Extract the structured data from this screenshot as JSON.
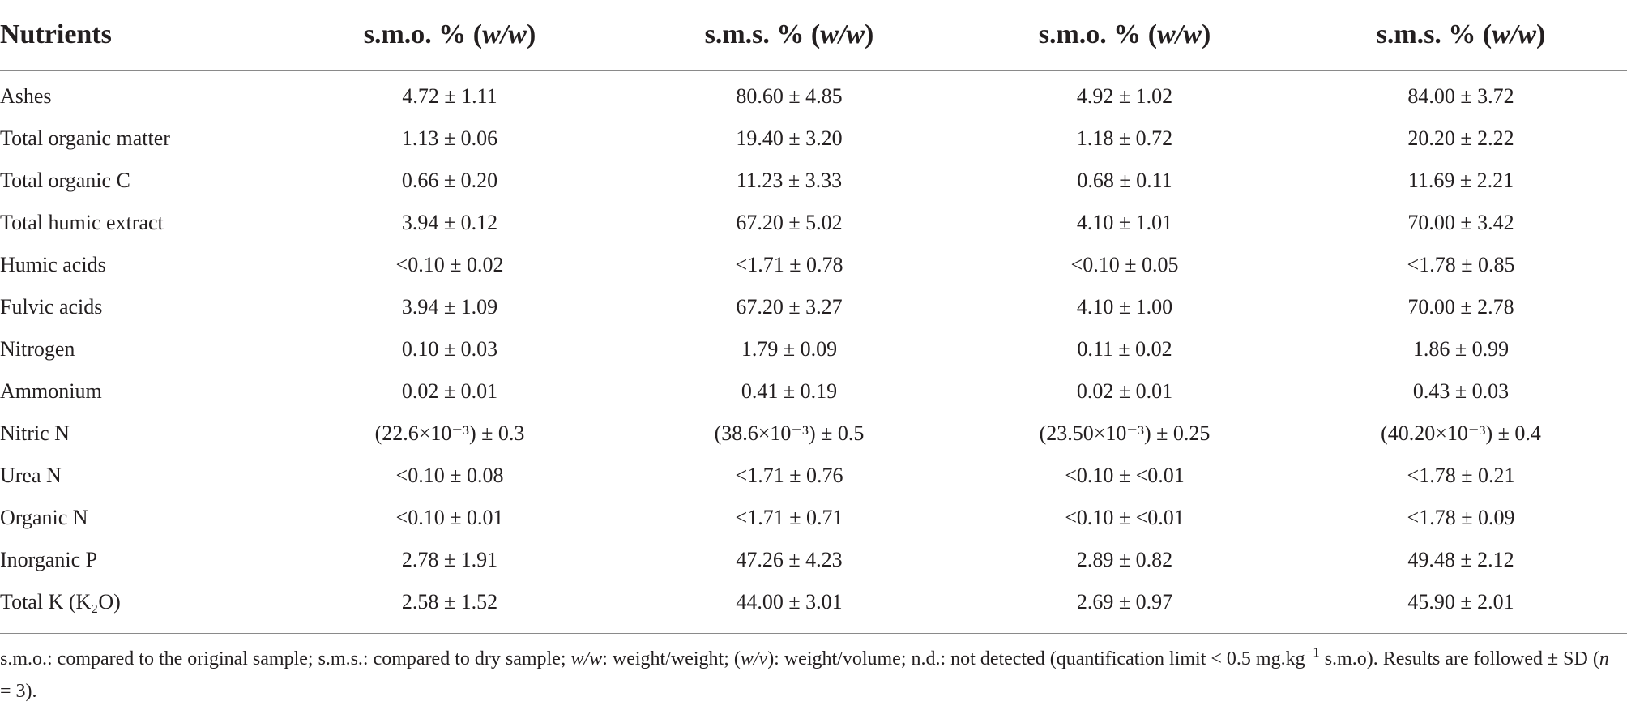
{
  "table": {
    "headers": [
      {
        "pre": "Nutrients",
        "italic": "",
        "post": ""
      },
      {
        "pre": "s.m.o. % (",
        "italic": "w/w",
        "post": ")"
      },
      {
        "pre": "s.m.s. % (",
        "italic": "w/w",
        "post": ")"
      },
      {
        "pre": "s.m.o. % (",
        "italic": "w/w",
        "post": ")"
      },
      {
        "pre": "s.m.s. % (",
        "italic": "w/w",
        "post": ")"
      }
    ],
    "rows": [
      {
        "label": "Ashes",
        "cells": [
          "4.72 ± 1.11",
          "80.60 ± 4.85",
          "4.92 ± 1.02",
          "84.00 ± 3.72"
        ]
      },
      {
        "label": "Total organic matter",
        "cells": [
          "1.13 ± 0.06",
          "19.40 ± 3.20",
          "1.18 ± 0.72",
          "20.20 ± 2.22"
        ]
      },
      {
        "label": "Total organic C",
        "cells": [
          "0.66 ± 0.20",
          "11.23 ± 3.33",
          "0.68 ± 0.11",
          "11.69 ± 2.21"
        ]
      },
      {
        "label": "Total humic extract",
        "cells": [
          "3.94 ± 0.12",
          "67.20 ± 5.02",
          "4.10 ± 1.01",
          "70.00 ± 3.42"
        ]
      },
      {
        "label": "Humic acids",
        "cells": [
          "<0.10 ± 0.02",
          "<1.71 ± 0.78",
          "<0.10 ± 0.05",
          "<1.78 ± 0.85"
        ]
      },
      {
        "label": "Fulvic acids",
        "cells": [
          "3.94 ± 1.09",
          "67.20 ± 3.27",
          "4.10 ± 1.00",
          "70.00 ± 2.78"
        ]
      },
      {
        "label": "Nitrogen",
        "cells": [
          "0.10 ± 0.03",
          "1.79 ± 0.09",
          "0.11 ± 0.02",
          "1.86 ± 0.99"
        ]
      },
      {
        "label": "Ammonium",
        "cells": [
          "0.02 ± 0.01",
          "0.41 ± 0.19",
          "0.02 ± 0.01",
          "0.43 ± 0.03"
        ]
      },
      {
        "label": "Nitric N",
        "cells": [
          "(22.6×10⁻³) ± 0.3",
          "(38.6×10⁻³) ± 0.5",
          "(23.50×10⁻³) ± 0.25",
          "(40.20×10⁻³) ± 0.4"
        ]
      },
      {
        "label": "Urea N",
        "cells": [
          "<0.10 ± 0.08",
          "<1.71 ± 0.76",
          "<0.10 ± <0.01",
          "<1.78 ± 0.21"
        ]
      },
      {
        "label": "Organic N",
        "cells": [
          "<0.10 ± 0.01",
          "<1.71 ± 0.71",
          "<0.10 ± <0.01",
          "<1.78 ± 0.09"
        ]
      },
      {
        "label": "Inorganic P",
        "cells": [
          "2.78 ± 1.91",
          "47.26 ± 4.23",
          "2.89 ± 0.82",
          "49.48 ± 2.12"
        ]
      },
      {
        "label": "Total K (K₂O)",
        "cells": [
          "2.58 ± 1.52",
          "44.00 ± 3.01",
          "2.69 ± 0.97",
          "45.90 ± 2.01"
        ]
      }
    ]
  },
  "footnote": {
    "part1": "s.m.o.: compared to the original sample; s.m.s.: compared to dry sample; ",
    "part2_italic": "w/w",
    "part3": ": weight/weight; (",
    "part4_italic": "w/v",
    "part5": "): weight/volume; n.d.: not detected (quantification limit < 0.5 mg.kg",
    "part6_sup": "−1",
    "part7": " s.m.o). Results are followed ± SD (",
    "part8_italic": "n",
    "part9": " = 3)."
  }
}
